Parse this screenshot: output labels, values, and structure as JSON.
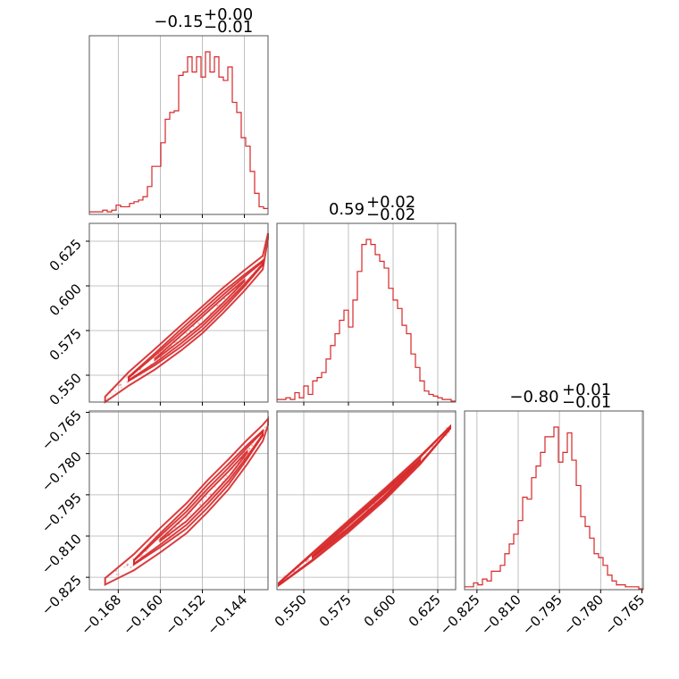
{
  "colors": {
    "accent": "#d62728",
    "grid": "#b0b0b0",
    "frame": "#555555"
  },
  "chart_data": {
    "type": "corner",
    "grid": true,
    "parameters": [
      {
        "index": 0,
        "title_main": "−0.15",
        "title_plus": "+0.00",
        "title_minus": "−0.01",
        "range": [
          -0.1735,
          -0.1395
        ],
        "ticks": [
          -0.168,
          -0.16,
          -0.152,
          -0.144
        ],
        "tick_labels": [
          "−0.168",
          "−0.160",
          "−0.152",
          "−0.144"
        ]
      },
      {
        "index": 1,
        "title_main": "0.59",
        "title_plus": "+0.02",
        "title_minus": "−0.02",
        "range": [
          0.535,
          0.635
        ],
        "ticks": [
          0.55,
          0.575,
          0.6,
          0.625
        ],
        "tick_labels": [
          "0.550",
          "0.575",
          "0.600",
          "0.625"
        ]
      },
      {
        "index": 2,
        "title_main": "−0.80",
        "title_plus": "+0.01",
        "title_minus": "−0.01",
        "range": [
          -0.8295,
          -0.7645
        ],
        "ticks": [
          -0.825,
          -0.81,
          -0.795,
          -0.78,
          -0.765
        ],
        "tick_labels": [
          "−0.825",
          "−0.810",
          "−0.795",
          "−0.780",
          "−0.765"
        ]
      }
    ],
    "histograms": [
      {
        "param": 0,
        "counts": [
          1,
          1,
          1,
          2,
          1,
          2,
          5,
          4,
          4,
          6,
          7,
          8,
          10,
          16,
          28,
          28,
          42,
          56,
          60,
          61,
          82,
          84,
          93,
          84,
          93,
          81,
          96,
          84,
          93,
          81,
          79,
          87,
          66,
          60,
          45,
          40,
          25,
          12,
          4,
          3
        ]
      },
      {
        "param": 1,
        "counts": [
          1,
          1,
          2,
          1,
          5,
          2,
          9,
          4,
          12,
          14,
          17,
          25,
          33,
          40,
          48,
          54,
          44,
          60,
          77,
          93,
          96,
          93,
          87,
          83,
          79,
          67,
          60,
          55,
          45,
          40,
          28,
          20,
          12,
          6,
          4,
          3,
          2,
          1,
          1,
          0
        ]
      },
      {
        "param": 2,
        "counts": [
          1,
          1,
          3,
          2,
          5,
          4,
          9,
          9,
          12,
          18,
          23,
          28,
          35,
          47,
          46,
          57,
          63,
          70,
          78,
          78,
          83,
          65,
          70,
          80,
          66,
          53,
          37,
          32,
          26,
          18,
          16,
          12,
          7,
          4,
          2,
          2,
          1,
          1,
          1,
          0
        ]
      }
    ],
    "pairs": [
      {
        "x_param": 0,
        "y_param": 1,
        "ridge": [
          [
            -0.1705,
            0.5365
          ],
          [
            -0.166,
            0.548
          ],
          [
            -0.161,
            0.559
          ],
          [
            -0.156,
            0.571
          ],
          [
            -0.152,
            0.581
          ],
          [
            -0.148,
            0.592
          ],
          [
            -0.144,
            0.603
          ],
          [
            -0.1405,
            0.613
          ],
          [
            -0.1395,
            0.628
          ]
        ],
        "width": [
          0.0075,
          0.0055,
          0.0035,
          0.0018
        ]
      },
      {
        "x_param": 0,
        "y_param": 2,
        "ridge": [
          [
            -0.1705,
            -0.8265
          ],
          [
            -0.165,
            -0.8195
          ],
          [
            -0.16,
            -0.8115
          ],
          [
            -0.155,
            -0.8035
          ],
          [
            -0.151,
            -0.7955
          ],
          [
            -0.147,
            -0.7875
          ],
          [
            -0.1435,
            -0.7795
          ],
          [
            -0.1405,
            -0.7725
          ],
          [
            -0.1395,
            -0.7685
          ]
        ],
        "width": [
          0.0058,
          0.0042,
          0.0027,
          0.0014
        ]
      },
      {
        "x_param": 1,
        "y_param": 2,
        "ridge": [
          [
            0.536,
            -0.8275
          ],
          [
            0.555,
            -0.8175
          ],
          [
            0.575,
            -0.8065
          ],
          [
            0.595,
            -0.795
          ],
          [
            0.615,
            -0.7825
          ],
          [
            0.632,
            -0.7705
          ]
        ],
        "width": [
          0.0022,
          0.0016,
          0.0011,
          0.0006
        ]
      }
    ]
  }
}
